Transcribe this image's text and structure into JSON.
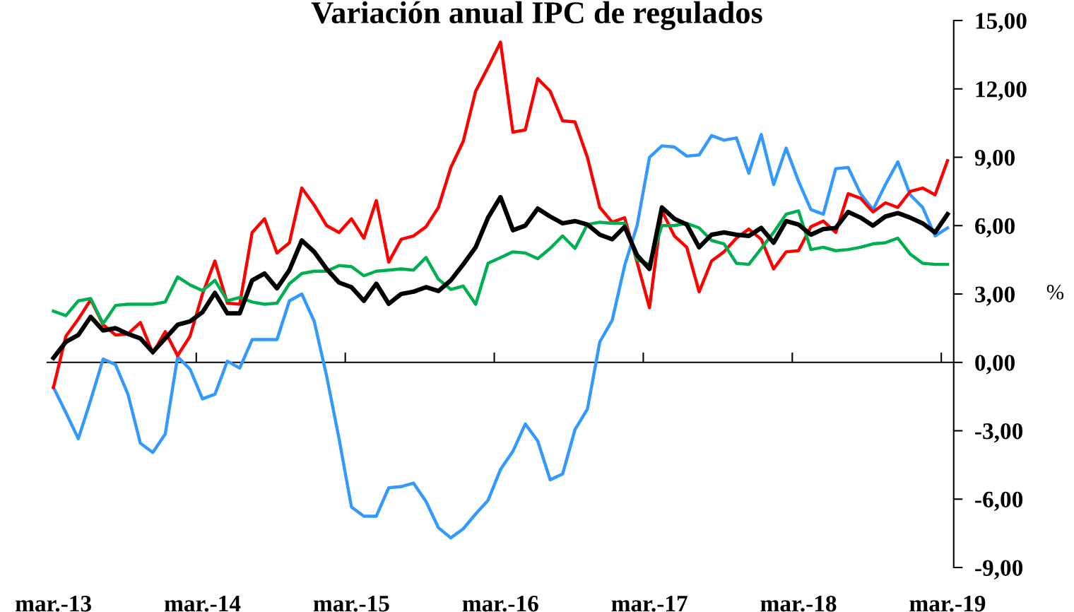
{
  "chart_data": {
    "type": "line",
    "title": "Variación anual IPC de regulados",
    "ylabel": "%",
    "categories": [
      "mar.-13",
      null,
      null,
      null,
      null,
      null,
      null,
      null,
      null,
      null,
      null,
      null,
      "mar.-14",
      null,
      null,
      null,
      null,
      null,
      null,
      null,
      null,
      null,
      null,
      null,
      "mar.-15",
      null,
      null,
      null,
      null,
      null,
      null,
      null,
      null,
      null,
      null,
      null,
      "mar.-16",
      null,
      null,
      null,
      null,
      null,
      null,
      null,
      null,
      null,
      null,
      null,
      "mar.-17",
      null,
      null,
      null,
      null,
      null,
      null,
      null,
      null,
      null,
      null,
      null,
      "mar.-18",
      null,
      null,
      null,
      null,
      null,
      null,
      null,
      null,
      null,
      null,
      null,
      "mar.-19"
    ],
    "ylim": [
      -9,
      15
    ],
    "yticks": [
      {
        "value": -9,
        "label": "-9,00"
      },
      {
        "value": -6,
        "label": "-6,00"
      },
      {
        "value": -3,
        "label": "-3,00"
      },
      {
        "value": 0,
        "label": "0,00"
      },
      {
        "value": 3,
        "label": "3,00"
      },
      {
        "value": 6,
        "label": "6,00"
      },
      {
        "value": 9,
        "label": "9,00"
      },
      {
        "value": 12,
        "label": "12,00"
      },
      {
        "value": 15,
        "label": "15,00"
      }
    ],
    "marker": "none",
    "line_style": "solid",
    "series": [
      {
        "color": "#3399ff",
        "values": [
          -1.1,
          -2.2,
          -3.35,
          -1.65,
          0.15,
          -0.1,
          -1.4,
          -3.55,
          -3.95,
          -3.15,
          0.25,
          -0.3,
          -1.6,
          -1.4,
          0.05,
          -0.25,
          1.0,
          1.0,
          1.0,
          2.7,
          3.0,
          1.8,
          -0.6,
          -3.35,
          -6.35,
          -6.75,
          -6.75,
          -5.5,
          -5.45,
          -5.3,
          -6.1,
          -7.25,
          -7.7,
          -7.3,
          -6.65,
          -6.05,
          -4.7,
          -3.9,
          -2.7,
          -3.45,
          -5.15,
          -4.9,
          -2.95,
          -2.05,
          0.9,
          1.85,
          4.25,
          6.0,
          9.0,
          9.5,
          9.45,
          9.05,
          9.1,
          9.95,
          9.75,
          9.85,
          8.3,
          10.0,
          7.8,
          9.4,
          7.95,
          6.7,
          6.5,
          8.5,
          8.55,
          7.4,
          6.7,
          7.8,
          8.8,
          7.35,
          6.8,
          5.55,
          5.9
        ]
      },
      {
        "color": "#ff0000",
        "values": [
          -1.1,
          1.15,
          1.9,
          2.75,
          1.65,
          1.2,
          1.25,
          1.75,
          0.4,
          1.35,
          0.3,
          1.15,
          3.0,
          4.45,
          2.6,
          2.55,
          5.7,
          6.3,
          4.8,
          5.25,
          7.65,
          6.9,
          6.0,
          5.7,
          6.3,
          5.45,
          7.1,
          4.4,
          5.4,
          5.55,
          5.95,
          6.8,
          8.55,
          9.7,
          11.9,
          12.95,
          14.05,
          10.1,
          10.2,
          12.45,
          11.9,
          10.6,
          10.55,
          9.0,
          6.8,
          6.15,
          6.35,
          4.4,
          2.4,
          6.65,
          5.55,
          5.05,
          3.1,
          4.45,
          4.85,
          5.45,
          5.85,
          5.4,
          4.1,
          4.85,
          4.9,
          5.95,
          6.2,
          5.7,
          7.4,
          7.2,
          6.6,
          7.0,
          6.8,
          7.5,
          7.65,
          7.35,
          8.85
        ]
      },
      {
        "color": "#00b050",
        "values": [
          2.25,
          2.05,
          2.7,
          2.8,
          1.7,
          2.5,
          2.55,
          2.55,
          2.55,
          2.65,
          3.75,
          3.4,
          3.15,
          3.6,
          2.7,
          2.85,
          2.65,
          2.55,
          2.6,
          3.45,
          3.9,
          4.0,
          4.0,
          4.25,
          4.2,
          3.8,
          4.0,
          4.05,
          4.1,
          4.05,
          4.6,
          3.65,
          3.2,
          3.35,
          2.55,
          4.35,
          4.6,
          4.85,
          4.8,
          4.55,
          5.0,
          5.55,
          5.0,
          6.05,
          6.15,
          6.1,
          6.1,
          4.5,
          4.3,
          6.0,
          6.0,
          6.1,
          5.9,
          5.35,
          5.2,
          4.35,
          4.3,
          5.0,
          5.7,
          6.5,
          6.65,
          4.95,
          5.05,
          4.9,
          4.95,
          5.05,
          5.2,
          5.25,
          5.45,
          4.75,
          4.35,
          4.3,
          4.3
        ]
      },
      {
        "color": "#000000",
        "values": [
          0.2,
          0.9,
          1.2,
          2.0,
          1.4,
          1.5,
          1.25,
          1.05,
          0.45,
          1.05,
          1.65,
          1.8,
          2.2,
          3.05,
          2.15,
          2.15,
          3.6,
          3.9,
          3.25,
          4.05,
          5.35,
          4.85,
          4.1,
          3.5,
          3.3,
          2.7,
          3.45,
          2.57,
          3.0,
          3.1,
          3.3,
          3.13,
          3.6,
          4.3,
          5.05,
          6.35,
          7.25,
          5.8,
          6.0,
          6.75,
          6.4,
          6.1,
          6.2,
          6.05,
          5.6,
          5.4,
          5.95,
          4.7,
          4.1,
          6.8,
          6.3,
          6.05,
          5.05,
          5.6,
          5.7,
          5.6,
          5.55,
          5.9,
          5.25,
          6.2,
          6.05,
          5.6,
          5.85,
          5.9,
          6.6,
          6.35,
          6.0,
          6.4,
          6.55,
          6.35,
          6.1,
          5.7,
          6.5
        ]
      }
    ]
  }
}
